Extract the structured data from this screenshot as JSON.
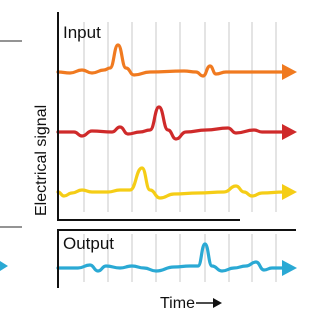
{
  "labels": {
    "input": "Input",
    "output": "Output",
    "y_axis": "Electrical signal",
    "x_axis": "Time"
  },
  "colors": {
    "input": "#f07a20",
    "red": "#cf2a2a",
    "yellow": "#f5cd16",
    "output": "#2aa9d4",
    "grid": "#c9c9c9",
    "frame": "#111111"
  },
  "signals": [
    {
      "key": "input"
    },
    {
      "key": "red"
    },
    {
      "key": "yellow"
    },
    {
      "key": "output"
    }
  ]
}
